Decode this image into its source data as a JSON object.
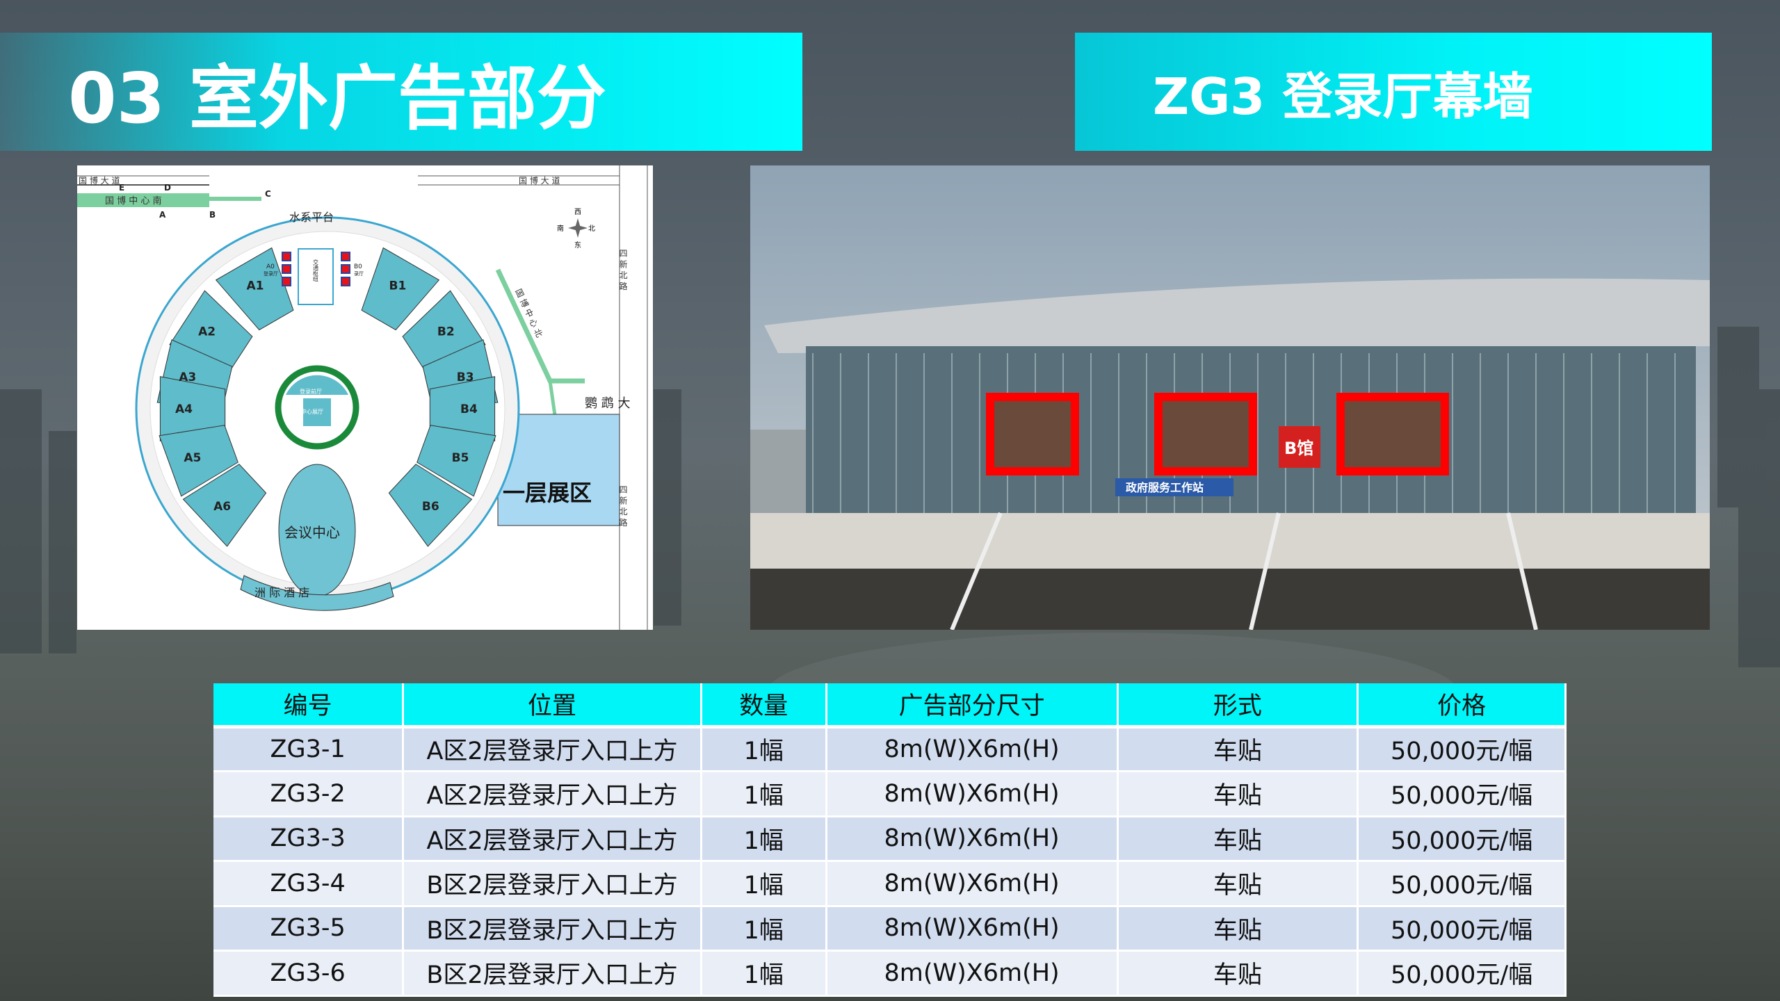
{
  "header": {
    "title": "03 室外广告部分",
    "subtitle": "ZG3 登录厅幕墙"
  },
  "map": {
    "roads": [
      "国 博 大 道",
      "国 博 大 道",
      "四 新 北 路",
      "四 新 北 路",
      "鹦 鹉 大"
    ],
    "metro_south": "国 博 中 心 南",
    "metro_north": "国 博 中 心 北",
    "metro_exits": [
      "A",
      "B",
      "C",
      "D",
      "E"
    ],
    "water_platform": "水系平台",
    "transit_hub": "交通枢纽",
    "halls_a": [
      "A1",
      "A2",
      "A3",
      "A4",
      "A5",
      "A6"
    ],
    "halls_b": [
      "B1",
      "B2",
      "B3",
      "B4",
      "B5",
      "B6"
    ],
    "a0": "A0",
    "a0_sub": "登录厅",
    "b0": "B0",
    "b0_sub": "录厅",
    "front_hall": "登录前厅",
    "center_hall": "中心展厅",
    "vip": "VIP厅",
    "conference": "会议中心",
    "hotel": "洲 际 酒 店",
    "first_floor": "一层展区",
    "compass": {
      "top": "西",
      "left": "南",
      "right": "北",
      "bottom": "东"
    },
    "colors": {
      "hall": "#5fbccb",
      "ad_marker": "#e8121a",
      "ring": "#1a8a3a",
      "metro": "#7ccf9e",
      "first_floor": "#a8d8f2"
    }
  },
  "photo": {
    "sign_label": "B馆",
    "banner_text": "政府服务工作站",
    "ad_frame_color": "#ff0000"
  },
  "table": {
    "headers": [
      "编号",
      "位置",
      "数量",
      "广告部分尺寸",
      "形式",
      "价格"
    ],
    "rows": [
      [
        "ZG3-1",
        "A区2层登录厅入口上方",
        "1幅",
        "8m(W)X6m(H)",
        "车贴",
        "50,000元/幅"
      ],
      [
        "ZG3-2",
        "A区2层登录厅入口上方",
        "1幅",
        "8m(W)X6m(H)",
        "车贴",
        "50,000元/幅"
      ],
      [
        "ZG3-3",
        "A区2层登录厅入口上方",
        "1幅",
        "8m(W)X6m(H)",
        "车贴",
        "50,000元/幅"
      ],
      [
        "ZG3-4",
        "B区2层登录厅入口上方",
        "1幅",
        "8m(W)X6m(H)",
        "车贴",
        "50,000元/幅"
      ],
      [
        "ZG3-5",
        "B区2层登录厅入口上方",
        "1幅",
        "8m(W)X6m(H)",
        "车贴",
        "50,000元/幅"
      ],
      [
        "ZG3-6",
        "B区2层登录厅入口上方",
        "1幅",
        "8m(W)X6m(H)",
        "车贴",
        "50,000元/幅"
      ]
    ]
  },
  "theme": {
    "accent": "#00ffff"
  }
}
